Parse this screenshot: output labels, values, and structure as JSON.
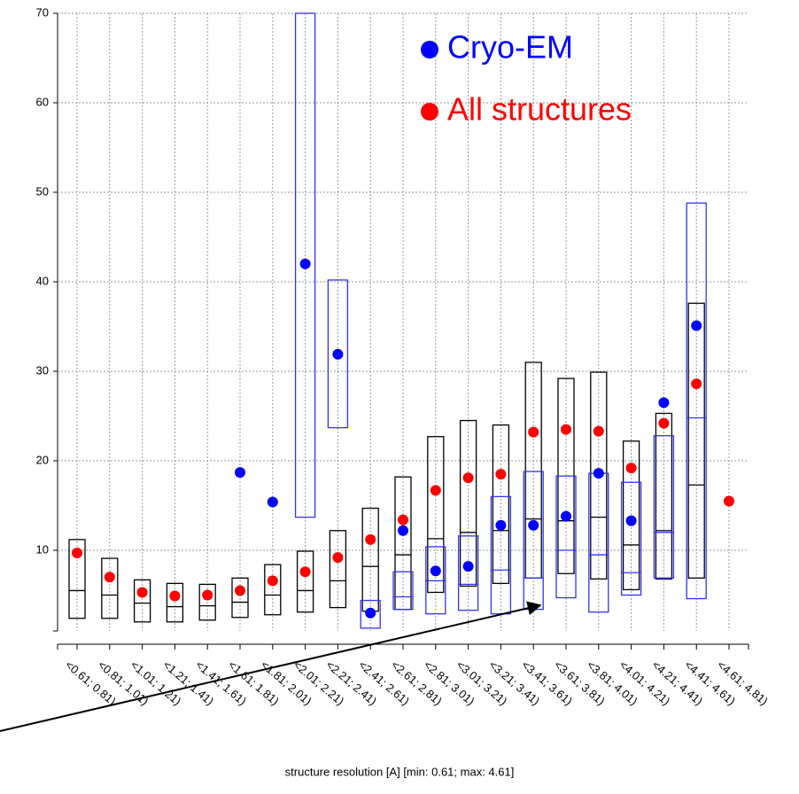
{
  "chart_data": {
    "type": "box",
    "x_label": "structure resolution [A] [min: 0.61; max: 4.61]",
    "categories": [
      "<0.61; 0.81)",
      "<0.81; 1.01)",
      "<1.01; 1.21)",
      "<1.21; 1.41)",
      "<1.41; 1.61)",
      "<1.61; 1.81)",
      "<1.81; 2.01)",
      "<2.01; 2.21)",
      "<2.21; 2.41)",
      "<2.41; 2.61)",
      "<2.61; 2.81)",
      "<2.81; 3.01)",
      "<3.01; 3.21)",
      "<3.21; 3.41)",
      "<3.41; 3.61)",
      "<3.61; 3.81)",
      "<3.81; 4.01)",
      "<4.01; 4.21)",
      "<4.21; 4.41)",
      "<4.41; 4.61)",
      "<4.61; 4.81)"
    ],
    "series": [
      {
        "name": "All structures",
        "color": "#ff0000",
        "box_color": "#000000",
        "low": [
          2.4,
          2.4,
          2.0,
          2.0,
          2.2,
          2.5,
          2.8,
          3.1,
          3.6,
          3.2,
          3.4,
          5.3,
          6.0,
          6.3,
          6.9,
          7.4,
          6.8,
          5.6,
          6.8,
          6.9,
          null
        ],
        "median": [
          5.5,
          5.0,
          4.1,
          3.7,
          3.8,
          4.2,
          5.0,
          5.5,
          6.6,
          8.2,
          9.5,
          11.3,
          12.0,
          12.2,
          13.5,
          13.3,
          13.7,
          10.6,
          12.2,
          17.3,
          null
        ],
        "high": [
          11.2,
          9.1,
          6.7,
          6.3,
          6.2,
          6.9,
          8.4,
          9.9,
          12.2,
          14.7,
          18.2,
          22.7,
          24.5,
          24.0,
          31.0,
          29.2,
          29.9,
          22.2,
          25.3,
          37.6,
          null
        ],
        "mean": [
          9.7,
          7.0,
          5.3,
          4.9,
          5.0,
          5.5,
          6.6,
          7.6,
          9.2,
          11.2,
          13.4,
          16.7,
          18.1,
          18.5,
          23.2,
          23.5,
          23.3,
          19.2,
          24.2,
          28.6,
          15.5
        ]
      },
      {
        "name": "Cryo-EM",
        "color": "#0000ff",
        "box_color": "#3333ee",
        "low": [
          null,
          null,
          null,
          null,
          null,
          null,
          null,
          13.7,
          23.7,
          1.3,
          3.4,
          2.9,
          3.3,
          2.9,
          3.4,
          4.7,
          3.1,
          5.0,
          6.9,
          4.6,
          null
        ],
        "median": [
          null,
          null,
          null,
          null,
          null,
          null,
          null,
          null,
          null,
          null,
          4.8,
          6.6,
          6.2,
          7.8,
          6.9,
          10.0,
          9.5,
          7.5,
          12.0,
          24.8,
          null
        ],
        "high": [
          null,
          null,
          null,
          null,
          null,
          null,
          null,
          70,
          40.2,
          4.4,
          7.6,
          10.4,
          11.6,
          16.0,
          18.8,
          18.3,
          18.6,
          17.6,
          22.8,
          48.8,
          null
        ],
        "mean": [
          null,
          null,
          null,
          null,
          null,
          18.7,
          15.4,
          42.0,
          31.9,
          3.0,
          12.2,
          7.7,
          8.2,
          12.8,
          12.8,
          13.8,
          18.6,
          13.3,
          26.5,
          35.1,
          null
        ]
      }
    ],
    "ylim": [
      0,
      70
    ],
    "yticks": [
      10,
      20,
      30,
      40,
      50,
      60,
      70
    ],
    "grid": true
  }
}
